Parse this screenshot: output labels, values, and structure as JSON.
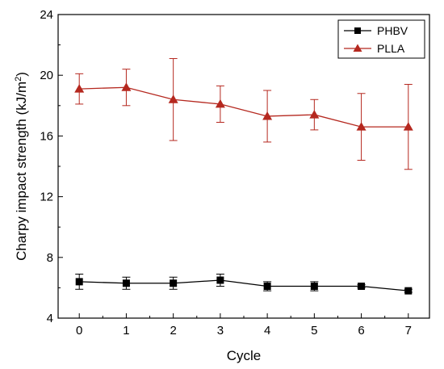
{
  "chart_data": {
    "type": "line",
    "title": "",
    "xlabel": "Cycle",
    "ylabel": "Charpy impact strength (kJ/m",
    "ylabel_sup": "2",
    "ylabel_end": ")",
    "x": [
      0,
      1,
      2,
      3,
      4,
      5,
      6,
      7
    ],
    "xlim": [
      -0.45,
      7.45
    ],
    "ylim": [
      4,
      24
    ],
    "xticks": [
      "0",
      "1",
      "2",
      "3",
      "4",
      "5",
      "6",
      "7"
    ],
    "yticks": [
      "4",
      "8",
      "12",
      "16",
      "20",
      "24"
    ],
    "grid": false,
    "legend_position": "top-right",
    "series": [
      {
        "name": "PHBV",
        "color": "#000000",
        "marker": "square",
        "values": [
          6.4,
          6.3,
          6.3,
          6.5,
          6.1,
          6.1,
          6.1,
          5.8
        ],
        "error": [
          0.5,
          0.4,
          0.4,
          0.4,
          0.3,
          0.3,
          0.1,
          0.1
        ]
      },
      {
        "name": "PLLA",
        "color": "#b5281f",
        "marker": "triangle",
        "values": [
          19.1,
          19.2,
          18.4,
          18.1,
          17.3,
          17.4,
          16.6,
          16.6
        ],
        "error": [
          1.0,
          1.2,
          2.7,
          1.2,
          1.7,
          1.0,
          2.2,
          2.8
        ]
      }
    ]
  }
}
